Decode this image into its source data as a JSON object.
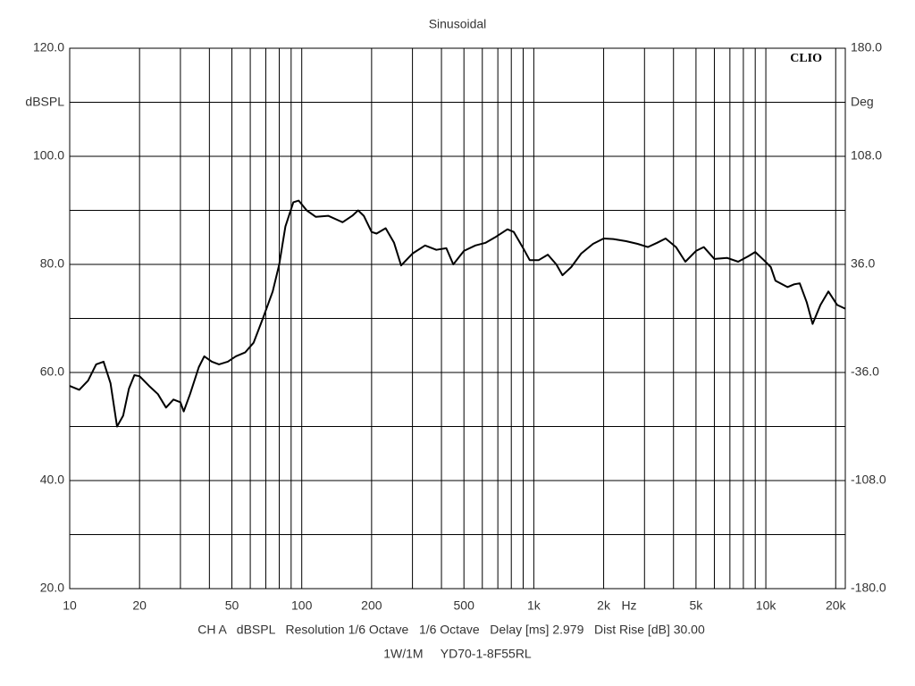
{
  "chart_data": {
    "type": "line",
    "title": "Sinusoidal",
    "logo": "CLIO",
    "y_label": "dBSPL",
    "y2_label": "Deg",
    "x_unit": "Hz",
    "footer": [
      "CH A   dBSPL   Resolution 1/6 Octave   1/6 Octave   Delay [ms] 2.979   Dist Rise [dB] 30.00",
      "1W/1M     YD70-1-8F55RL"
    ],
    "log_x": true,
    "grid": true,
    "xlim": [
      10,
      22000
    ],
    "ylim": [
      20,
      120
    ],
    "y2lim": [
      -180,
      180
    ],
    "xticks": [
      10,
      20,
      50,
      100,
      200,
      500,
      {
        "value": 1000,
        "label": "1k"
      },
      {
        "value": 2000,
        "label": "2k"
      },
      {
        "value": 5000,
        "label": "5k"
      },
      {
        "value": 10000,
        "label": "10k"
      },
      {
        "value": 20000,
        "label": "20k"
      }
    ],
    "xminor": [
      30,
      40,
      60,
      70,
      80,
      90,
      300,
      400,
      600,
      700,
      800,
      900,
      3000,
      4000,
      6000,
      7000,
      8000,
      9000
    ],
    "yticks": [
      {
        "value": 20,
        "label": "20.0"
      },
      {
        "value": 40,
        "label": "40.0"
      },
      {
        "value": 60,
        "label": "60.0"
      },
      {
        "value": 80,
        "label": "80.0"
      },
      {
        "value": 100,
        "label": "100.0"
      },
      {
        "value": 120,
        "label": "120.0"
      }
    ],
    "yminor": [
      30,
      50,
      70,
      90,
      110
    ],
    "y2ticks": [
      {
        "value": -180,
        "label": "-180.0"
      },
      {
        "value": -108,
        "label": "-108.0"
      },
      {
        "value": -36,
        "label": "-36.0"
      },
      {
        "value": 36,
        "label": "36.0"
      },
      {
        "value": 108,
        "label": "108.0"
      },
      {
        "value": 180,
        "label": "180.0"
      }
    ],
    "x": [
      10,
      11,
      12,
      13,
      14,
      15,
      16,
      17,
      18,
      19,
      20,
      22,
      24,
      26,
      28,
      30,
      31,
      33,
      36,
      38,
      41,
      44,
      48,
      52,
      57,
      62,
      68,
      75,
      80,
      85,
      92,
      97,
      105,
      115,
      130,
      150,
      165,
      175,
      185,
      200,
      210,
      230,
      250,
      268,
      300,
      340,
      380,
      420,
      450,
      500,
      560,
      620,
      680,
      770,
      820,
      900,
      960,
      1050,
      1150,
      1250,
      1330,
      1450,
      1600,
      1800,
      2000,
      2200,
      2500,
      2800,
      3100,
      3400,
      3700,
      4100,
      4500,
      5000,
      5400,
      6000,
      6800,
      7600,
      8400,
      9000,
      9800,
      10500,
      11000,
      12400,
      13200,
      14000,
      15000,
      15900,
      17200,
      18600,
      20300,
      22000
    ],
    "series": [
      {
        "color": "#000000",
        "values": [
          57.5,
          56.8,
          58.5,
          61.5,
          62,
          58,
          50,
          52,
          57,
          59.5,
          59.3,
          57.5,
          56,
          53.5,
          55,
          54.5,
          52.8,
          56,
          61,
          63,
          62,
          61.5,
          62,
          63,
          63.7,
          65.5,
          70,
          75,
          80,
          87,
          91.5,
          91.8,
          90,
          88.8,
          89,
          87.8,
          89,
          90,
          89,
          86,
          85.7,
          86.7,
          84,
          79.8,
          82,
          83.5,
          82.7,
          83,
          80,
          82.5,
          83.5,
          84,
          85,
          86.5,
          86,
          83,
          80.8,
          80.8,
          81.8,
          80,
          78,
          79.5,
          82,
          83.8,
          84.8,
          84.7,
          84.3,
          83.8,
          83.2,
          84,
          84.8,
          83.2,
          80.5,
          82.5,
          83.2,
          81,
          81.2,
          80.5,
          81.5,
          82.3,
          80.8,
          79.5,
          77,
          75.8,
          76.3,
          76.5,
          73,
          69,
          72.5,
          75,
          72.5,
          71.8
        ]
      }
    ]
  }
}
